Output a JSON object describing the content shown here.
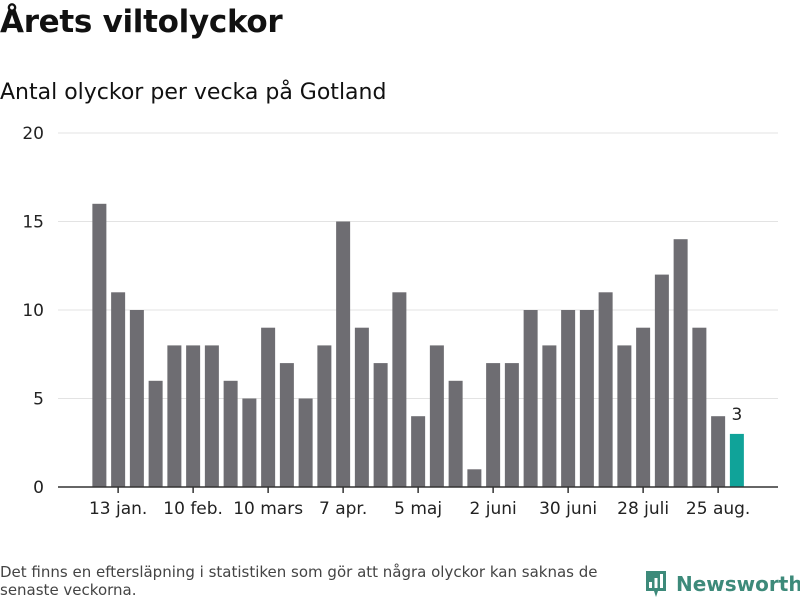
{
  "header": {
    "title": "Årets viltolyckor",
    "subtitle": "Antal olyckor per vecka på Gotland"
  },
  "footer": {
    "note": "Det finns en eftersläpning i statistiken som gör att några olyckor kan saknas de senaste veckorna.",
    "brand": "Newsworthy"
  },
  "colors": {
    "bar": "#6e6d72",
    "highlight": "#10a399",
    "grid": "#e3e3e3",
    "axis": "#333333",
    "brand": "#3d8a7a"
  },
  "icons": {
    "brand_logo": "newsworthy-logo-icon"
  },
  "chart_data": {
    "type": "bar",
    "title": "Antal olyckor per vecka på Gotland",
    "xlabel": "",
    "ylabel": "",
    "ylim": [
      0,
      20
    ],
    "yticks": [
      0,
      5,
      10,
      15,
      20
    ],
    "xtick_labels": [
      "13 jan.",
      "10 feb.",
      "10 mars",
      "7 apr.",
      "5 maj",
      "2 juni",
      "30 juni",
      "28 juli",
      "25 aug."
    ],
    "xtick_bar_index": [
      1,
      5,
      9,
      13,
      17,
      21,
      25,
      29,
      33
    ],
    "values": [
      16,
      11,
      10,
      6,
      8,
      8,
      8,
      6,
      5,
      9,
      7,
      5,
      8,
      15,
      9,
      7,
      11,
      4,
      8,
      6,
      1,
      7,
      7,
      10,
      8,
      10,
      10,
      11,
      8,
      9,
      12,
      14,
      9,
      4,
      3
    ],
    "highlight_index": 34,
    "highlight_label": "3",
    "grid": true,
    "legend": "none"
  }
}
